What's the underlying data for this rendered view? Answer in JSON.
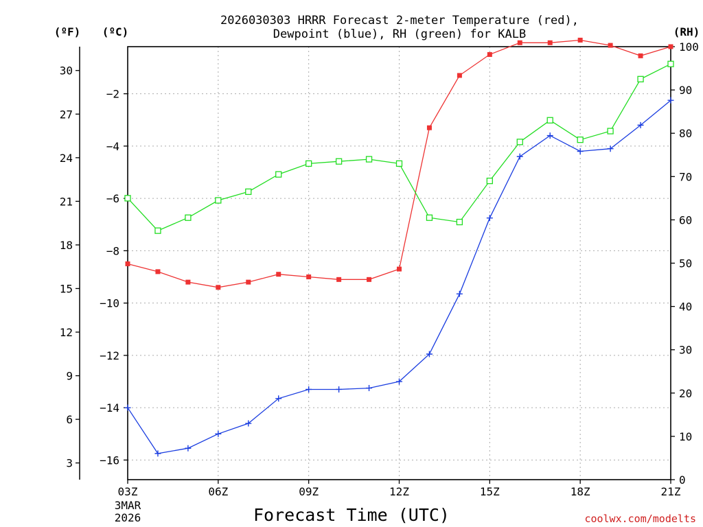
{
  "chart_data": {
    "type": "line",
    "title": [
      "2026030303 HRRR Forecast 2-meter Temperature (red),",
      "Dewpoint (blue), RH (green) for KALB"
    ],
    "left_outer_unit": "(ºF)",
    "left_inner_unit": "(ºC)",
    "right_unit": "(RH)",
    "xlabel": "Forecast Time (UTC)",
    "x_ticks": [
      "03Z",
      "06Z",
      "09Z",
      "12Z",
      "15Z",
      "18Z",
      "21Z"
    ],
    "x_tick_hours": [
      3,
      6,
      9,
      12,
      15,
      18,
      21
    ],
    "date_lines": [
      "3MAR",
      "2026"
    ],
    "x_hours": [
      3,
      4,
      5,
      6,
      7,
      8,
      9,
      10,
      11,
      12,
      13,
      14,
      15,
      16,
      17,
      18,
      19,
      20,
      21
    ],
    "xlim": [
      3,
      21
    ],
    "celsius_ylim": [
      -16.75,
      -0.2
    ],
    "celsius_ticks": [
      -2,
      -4,
      -6,
      -8,
      -10,
      -12,
      -14,
      -16
    ],
    "fahrenheit_ticks": [
      30,
      27,
      24,
      21,
      18,
      15,
      12,
      9,
      6,
      3
    ],
    "rh_ylim": [
      0,
      100
    ],
    "rh_ticks": [
      100,
      90,
      80,
      70,
      60,
      50,
      40,
      30,
      20,
      10,
      0
    ],
    "series": [
      {
        "name": "Temperature",
        "axis": "celsius",
        "color": "#ee3333",
        "marker": "filled-square",
        "values": [
          -8.5,
          -8.8,
          -9.2,
          -9.4,
          -9.2,
          -8.9,
          -9.0,
          -9.1,
          -9.1,
          -8.7,
          -3.3,
          -1.3,
          -0.5,
          -0.05,
          -0.05,
          0.05,
          -0.15,
          -0.55,
          -0.2
        ]
      },
      {
        "name": "Dewpoint",
        "axis": "celsius",
        "color": "#1a3de0",
        "marker": "plus",
        "values": [
          -14.0,
          -15.75,
          -15.55,
          -15.0,
          -14.6,
          -13.65,
          -13.3,
          -13.3,
          -13.25,
          -13.0,
          -11.95,
          -9.65,
          -6.75,
          -4.4,
          -3.6,
          -4.2,
          -4.1,
          -3.2,
          -2.25
        ]
      },
      {
        "name": "RH",
        "axis": "rh",
        "color": "#22dd22",
        "marker": "open-square",
        "values": [
          65,
          57.5,
          60.5,
          64.5,
          66.5,
          70.5,
          73,
          73.5,
          74,
          73,
          60.5,
          59.5,
          69,
          78,
          83,
          78.5,
          80.5,
          92.5,
          96
        ]
      }
    ],
    "grid": true,
    "legend": "none",
    "credit": "coolwx.com/modelts"
  }
}
